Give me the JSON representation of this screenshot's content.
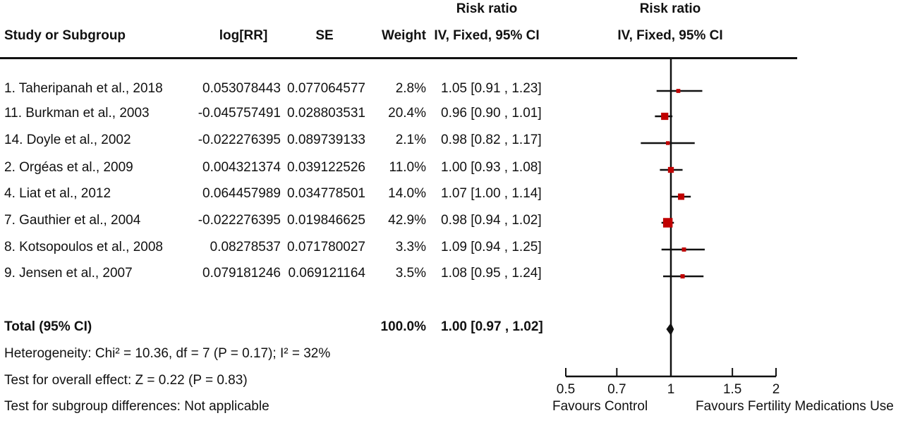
{
  "header": {
    "group_label_rr_left": "Risk ratio",
    "group_label_rr_right": "Risk ratio",
    "columns": {
      "study": "Study or Subgroup",
      "logrr": "log[RR]",
      "se": "SE",
      "weight": "Weight",
      "ci": "IV, Fixed, 95% CI",
      "plot": "IV, Fixed, 95% CI"
    }
  },
  "studies": [
    {
      "name": "1. Taheripanah et al., 2018",
      "logrr": "0.053078443",
      "se": "0.077064577",
      "weight": "2.8%",
      "ci": "1.05 [0.91 , 1.23]"
    },
    {
      "name": "11. Burkman et al., 2003",
      "logrr": "-0.045757491",
      "se": "0.028803531",
      "weight": "20.4%",
      "ci": "0.96 [0.90 , 1.01]"
    },
    {
      "name": "14. Doyle et al., 2002",
      "logrr": "-0.022276395",
      "se": "0.089739133",
      "weight": "2.1%",
      "ci": "0.98 [0.82 , 1.17]"
    },
    {
      "name": "2. Orgéas et al., 2009",
      "logrr": "0.004321374",
      "se": "0.039122526",
      "weight": "11.0%",
      "ci": "1.00 [0.93 , 1.08]"
    },
    {
      "name": "4. Liat et al., 2012",
      "logrr": "0.064457989",
      "se": "0.034778501",
      "weight": "14.0%",
      "ci": "1.07 [1.00 , 1.14]"
    },
    {
      "name": "7. Gauthier et al., 2004",
      "logrr": "-0.022276395",
      "se": "0.019846625",
      "weight": "42.9%",
      "ci": "0.98 [0.94 , 1.02]"
    },
    {
      "name": "8. Kotsopoulos et al., 2008",
      "logrr": "0.08278537",
      "se": "0.071780027",
      "weight": "3.3%",
      "ci": "1.09 [0.94 , 1.25]"
    },
    {
      "name": "9. Jensen et al., 2007",
      "logrr": "0.079181246",
      "se": "0.069121164",
      "weight": "3.5%",
      "ci": "1.08 [0.95 , 1.24]"
    }
  ],
  "total": {
    "label": "Total (95% CI)",
    "weight": "100.0%",
    "ci": "1.00 [0.97 , 1.02]"
  },
  "footer": {
    "heterogeneity": "Heterogeneity: Chi² = 10.36, df = 7 (P = 0.17); I² = 32%",
    "overall_effect": "Test for overall effect: Z = 0.22 (P = 0.83)",
    "subgroup": "Test for subgroup differences: Not applicable"
  },
  "axis": {
    "ticks": [
      "0.5",
      "0.7",
      "1",
      "1.5",
      "2"
    ],
    "favours_left": "Favours Control",
    "favours_right": "Favours Fertility Medications Use"
  },
  "chart_data": {
    "type": "forest",
    "scale": "log",
    "xlim": [
      0.5,
      2
    ],
    "ticks": [
      0.5,
      0.7,
      1,
      1.5,
      2
    ],
    "null_line": 1,
    "studies": [
      {
        "name": "1. Taheripanah et al., 2018",
        "rr": 1.05,
        "lower": 0.91,
        "upper": 1.23,
        "weight": 2.8
      },
      {
        "name": "11. Burkman et al., 2003",
        "rr": 0.96,
        "lower": 0.9,
        "upper": 1.01,
        "weight": 20.4
      },
      {
        "name": "14. Doyle et al., 2002",
        "rr": 0.98,
        "lower": 0.82,
        "upper": 1.17,
        "weight": 2.1
      },
      {
        "name": "2. Orgéas et al., 2009",
        "rr": 1.0,
        "lower": 0.93,
        "upper": 1.08,
        "weight": 11.0
      },
      {
        "name": "4. Liat et al., 2012",
        "rr": 1.07,
        "lower": 1.0,
        "upper": 1.14,
        "weight": 14.0
      },
      {
        "name": "7. Gauthier et al., 2004",
        "rr": 0.98,
        "lower": 0.94,
        "upper": 1.02,
        "weight": 42.9
      },
      {
        "name": "8. Kotsopoulos et al., 2008",
        "rr": 1.09,
        "lower": 0.94,
        "upper": 1.25,
        "weight": 3.3
      },
      {
        "name": "9. Jensen et al., 2007",
        "rr": 1.08,
        "lower": 0.95,
        "upper": 1.24,
        "weight": 3.5
      }
    ],
    "pooled": {
      "rr": 1.0,
      "lower": 0.97,
      "upper": 1.02
    },
    "colors": {
      "square": "#c00000",
      "lines": "#111111"
    }
  }
}
